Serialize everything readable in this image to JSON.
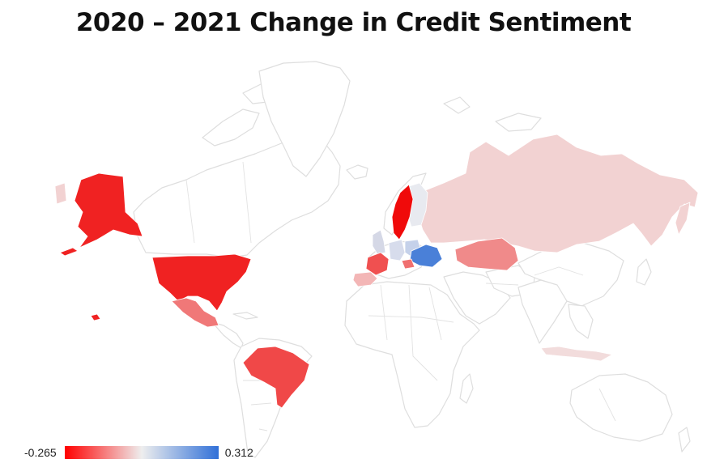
{
  "title": "2020 – 2021 Change in Credit Sentiment",
  "legend": {
    "min_label": "-0.265",
    "max_label": "0.312",
    "min_color": "#ff0000",
    "mid_color": "#eeeeee",
    "max_color": "#3070d8"
  },
  "map": {
    "projection": "world",
    "base_land_color": "#ffffff",
    "border_color": "#dedede",
    "regions": [
      {
        "name": "Alaska (United States)",
        "color": "#f02222"
      },
      {
        "name": "United States",
        "color": "#f02222"
      },
      {
        "name": "Mexico",
        "color": "#f07878"
      },
      {
        "name": "Brazil",
        "color": "#f04848"
      },
      {
        "name": "Sweden",
        "color": "#f00a0a"
      },
      {
        "name": "Ukraine",
        "color": "#4a80d8"
      },
      {
        "name": "France",
        "color": "#f05050"
      },
      {
        "name": "Spain",
        "color": "#f3b6b6"
      },
      {
        "name": "Kazakhstan",
        "color": "#f08a8a"
      },
      {
        "name": "Russia",
        "color": "#f2d2d2"
      },
      {
        "name": "Finland",
        "color": "#e8eaf0"
      },
      {
        "name": "Poland",
        "color": "#c5d1ea"
      },
      {
        "name": "Germany",
        "color": "#d7dcec"
      },
      {
        "name": "United Kingdom",
        "color": "#d5d8e6"
      },
      {
        "name": "Indonesia",
        "color": "#f2dcdc"
      }
    ]
  }
}
